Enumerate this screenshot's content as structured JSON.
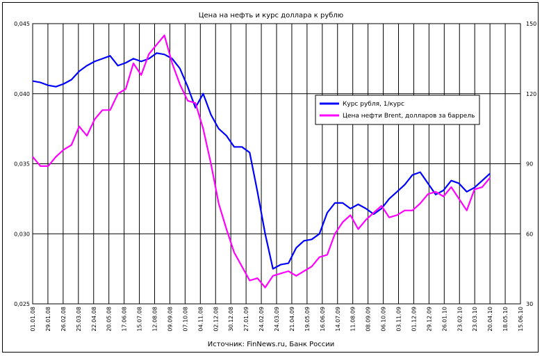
{
  "chart_data": {
    "type": "line",
    "title": "Цена на нефть и курс доллара к рублю",
    "source": "Источник: FinNews.ru, Банк России",
    "y_left": {
      "min": 0.025,
      "max": 0.045,
      "ticks": [
        "0,025",
        "0,030",
        "0,035",
        "0,040",
        "0,045"
      ]
    },
    "y_right": {
      "min": 30,
      "max": 150,
      "ticks": [
        "30",
        "60",
        "90",
        "120",
        "150"
      ]
    },
    "x_ticks": [
      "01.01.08",
      "29.01.08",
      "26.02.08",
      "25.03.08",
      "22.04.08",
      "20.05.08",
      "17.06.08",
      "15.07.08",
      "12.08.08",
      "09.09.08",
      "07.10.08",
      "04.11.08",
      "02.12.08",
      "30.12.08",
      "27.01.09",
      "24.02.09",
      "24.03.09",
      "21.04.09",
      "19.05.09",
      "16.06.09",
      "14.07.09",
      "11.08.09",
      "08.09.09",
      "06.10.09",
      "03.11.09",
      "01.12.09",
      "29.12.09",
      "26.01.10",
      "23.02.10",
      "23.03.10",
      "20.04.10",
      "18.05.10",
      "15.06.10"
    ],
    "series": [
      {
        "name": "Курс рубля, 1/курс",
        "color": "#0000ff",
        "axis": "left",
        "values": [
          0.0409,
          0.0408,
          0.0406,
          0.0405,
          0.0407,
          0.041,
          0.0416,
          0.042,
          0.0423,
          0.0425,
          0.0427,
          0.042,
          0.0422,
          0.0425,
          0.0423,
          0.0425,
          0.0429,
          0.0428,
          0.0425,
          0.0418,
          0.0405,
          0.039,
          0.04,
          0.0385,
          0.0375,
          0.037,
          0.0362,
          0.0362,
          0.0358,
          0.033,
          0.03,
          0.0275,
          0.0278,
          0.0279,
          0.029,
          0.0295,
          0.0296,
          0.03,
          0.0315,
          0.0322,
          0.0322,
          0.0318,
          0.0321,
          0.0318,
          0.0314,
          0.0318,
          0.0325,
          0.033,
          0.0335,
          0.0342,
          0.0344,
          0.0336,
          0.0328,
          0.0331,
          0.0338,
          0.0336,
          0.033,
          0.0333,
          0.0338,
          0.0343
        ]
      },
      {
        "name": "Цена нефти Brent, долларов за баррель",
        "color": "#ff00ff",
        "axis": "right",
        "values": [
          93,
          89,
          89,
          93,
          96,
          98,
          106,
          102,
          109,
          113,
          113,
          120,
          122,
          133,
          128,
          137,
          141,
          145,
          133,
          124,
          117,
          116,
          105,
          90,
          73,
          62,
          52,
          46,
          40,
          41,
          37,
          42,
          43,
          44,
          42,
          44,
          46,
          50,
          51,
          60,
          65,
          68,
          62,
          66,
          69,
          72,
          67,
          68,
          70,
          70,
          73,
          77,
          78,
          76,
          80,
          75,
          70,
          79,
          80,
          84
        ]
      }
    ],
    "legend_position": "top-right",
    "grid": true
  }
}
